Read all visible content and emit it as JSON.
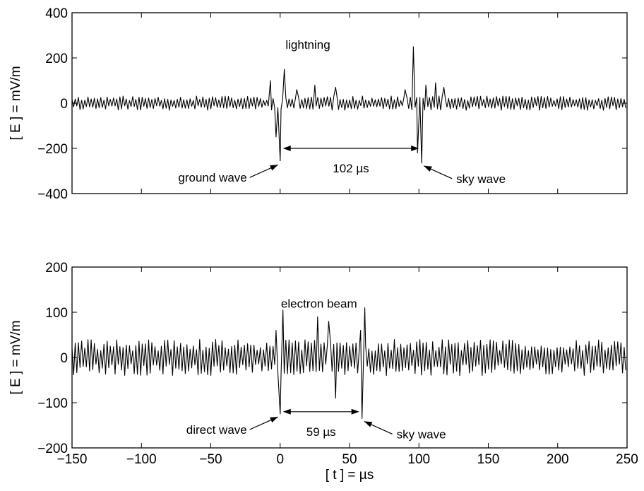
{
  "chart_data": [
    {
      "type": "line",
      "title": "",
      "xlabel": "",
      "ylabel": "[ E ] = mV/m",
      "xlim": [
        -150,
        250
      ],
      "ylim": [
        -400,
        400
      ],
      "xticks": [
        -150,
        -100,
        -50,
        0,
        50,
        100,
        150,
        200,
        250
      ],
      "yticks": [
        -400,
        -200,
        0,
        200,
        400
      ],
      "yticklabels": [
        "−400",
        "−200",
        "0",
        "200",
        "400"
      ],
      "grid": false,
      "series": [
        {
          "label_text": "lightning",
          "noise_amplitude": 35,
          "features": [
            {
              "t": -7,
              "v": 100
            },
            {
              "t": -3,
              "v": -150
            },
            {
              "t": 0,
              "v": -255
            },
            {
              "t": 3,
              "v": 150
            },
            {
              "t": 12,
              "v": 60
            },
            {
              "t": 25,
              "v": 80
            },
            {
              "t": 40,
              "v": 70
            },
            {
              "t": 90,
              "v": 60
            },
            {
              "t": 96,
              "v": 250
            },
            {
              "t": 99,
              "v": -220
            },
            {
              "t": 102,
              "v": -265
            },
            {
              "t": 105,
              "v": 80
            },
            {
              "t": 112,
              "v": 90
            },
            {
              "t": 118,
              "v": 70
            }
          ]
        }
      ],
      "annotations": [
        {
          "text": "ground wave",
          "t": 0,
          "v": -260
        },
        {
          "text": "102 µs",
          "from": 0,
          "to": 102,
          "v": -200
        },
        {
          "text": "sky wave",
          "t": 102,
          "v": -265
        }
      ]
    },
    {
      "type": "line",
      "title": "",
      "xlabel": "[ t ] = µs",
      "ylabel": "[ E ] = mV/m",
      "xlim": [
        -150,
        250
      ],
      "ylim": [
        -200,
        200
      ],
      "xticks": [
        -150,
        -100,
        -50,
        0,
        50,
        100,
        150,
        200,
        250
      ],
      "xticklabels": [
        "−150",
        "−100",
        "−50",
        "0",
        "50",
        "100",
        "150",
        "200",
        "250"
      ],
      "yticks": [
        -200,
        -100,
        0,
        100,
        200
      ],
      "yticklabels": [
        "−200",
        "−100",
        "0",
        "100",
        "200"
      ],
      "grid": false,
      "series": [
        {
          "label_text": "electron beam",
          "noise_amplitude": 45,
          "features": [
            {
              "t": -3,
              "v": 60
            },
            {
              "t": 0,
              "v": -125
            },
            {
              "t": 2,
              "v": 105
            },
            {
              "t": 27,
              "v": 90
            },
            {
              "t": 35,
              "v": 80
            },
            {
              "t": 40,
              "v": -90
            },
            {
              "t": 58,
              "v": 60
            },
            {
              "t": 59,
              "v": -135
            },
            {
              "t": 61,
              "v": 110
            }
          ]
        }
      ],
      "annotations": [
        {
          "text": "direct wave",
          "t": 0,
          "v": -125
        },
        {
          "text": "59 µs",
          "from": 0,
          "to": 59,
          "v": -120
        },
        {
          "text": "sky wave",
          "t": 59,
          "v": -135
        }
      ]
    }
  ]
}
